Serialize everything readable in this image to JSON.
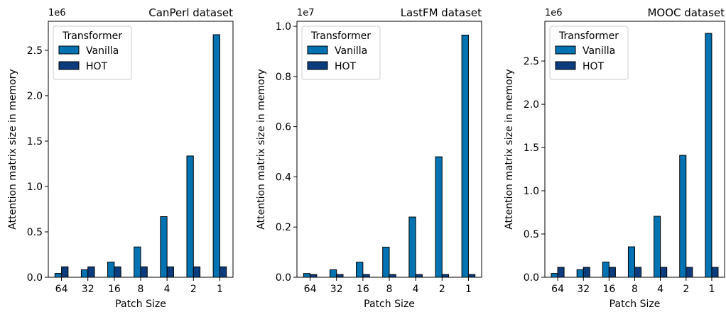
{
  "chart_data": [
    {
      "type": "bar",
      "title": "CanPerl dataset",
      "xlabel": "Patch Size",
      "ylabel": "Attention matrix size in memory",
      "y_multiplier_label": "1e6",
      "categories": [
        "64",
        "32",
        "16",
        "8",
        "4",
        "2",
        "1"
      ],
      "legend": {
        "title": "Transformer",
        "placement": "top-left"
      },
      "ylim": [
        0,
        2.82
      ],
      "yticks": [
        0.0,
        0.5,
        1.0,
        1.5,
        2.0,
        2.5
      ],
      "ytick_labels": [
        "0.0",
        "0.5",
        "1.0",
        "1.5",
        "2.0",
        "2.5"
      ],
      "grid": false,
      "series": [
        {
          "name": "Vanilla",
          "values": [
            0.042,
            0.083,
            0.167,
            0.334,
            0.668,
            1.336,
            2.672
          ]
        },
        {
          "name": "HOT",
          "values": [
            0.115,
            0.115,
            0.115,
            0.115,
            0.115,
            0.115,
            0.115
          ]
        }
      ]
    },
    {
      "type": "bar",
      "title": "LastFM dataset",
      "xlabel": "Patch Size",
      "ylabel": "Attention matrix size in memory",
      "y_multiplier_label": "1e7",
      "categories": [
        "64",
        "32",
        "16",
        "8",
        "4",
        "2",
        "1"
      ],
      "legend": {
        "title": "Transformer",
        "placement": "top-left"
      },
      "ylim": [
        0,
        1.02
      ],
      "yticks": [
        0.0,
        0.2,
        0.4,
        0.6,
        0.8,
        1.0
      ],
      "ytick_labels": [
        "0.0",
        "0.2",
        "0.4",
        "0.6",
        "0.8",
        "1.0"
      ],
      "grid": false,
      "series": [
        {
          "name": "Vanilla",
          "values": [
            0.015,
            0.03,
            0.06,
            0.12,
            0.24,
            0.48,
            0.965
          ]
        },
        {
          "name": "HOT",
          "values": [
            0.011,
            0.011,
            0.011,
            0.011,
            0.011,
            0.011,
            0.011
          ]
        }
      ]
    },
    {
      "type": "bar",
      "title": "MOOC dataset",
      "xlabel": "Patch Size",
      "ylabel": "Attention matrix size in memory",
      "y_multiplier_label": "1e6",
      "categories": [
        "64",
        "32",
        "16",
        "8",
        "4",
        "2",
        "1"
      ],
      "legend": {
        "title": "Transformer",
        "placement": "top-left"
      },
      "ylim": [
        0,
        2.96
      ],
      "yticks": [
        0.0,
        0.5,
        1.0,
        1.5,
        2.0,
        2.5
      ],
      "ytick_labels": [
        "0.0",
        "0.5",
        "1.0",
        "1.5",
        "2.0",
        "2.5"
      ],
      "grid": false,
      "series": [
        {
          "name": "Vanilla",
          "values": [
            0.044,
            0.088,
            0.176,
            0.352,
            0.705,
            1.41,
            2.82
          ]
        },
        {
          "name": "HOT",
          "values": [
            0.115,
            0.115,
            0.115,
            0.115,
            0.115,
            0.115,
            0.115
          ]
        }
      ]
    }
  ],
  "colors": {
    "vanilla": "#0173b2",
    "hot": "#0c3c7e",
    "edge": "#000000"
  }
}
